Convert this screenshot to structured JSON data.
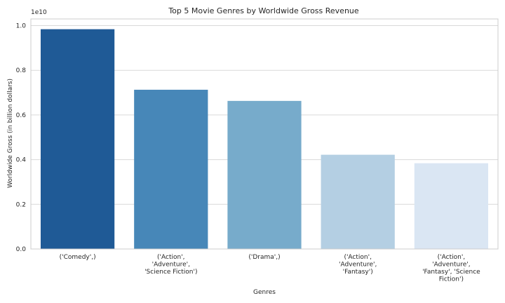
{
  "chart_data": {
    "type": "bar",
    "title": "Top 5 Movie Genres by Worldwide Gross Revenue",
    "xlabel": "Genres",
    "ylabel": "Worldwide Gross (in billion dollars)",
    "offset_text": "1e10",
    "categories": [
      [
        "('Comedy',)"
      ],
      [
        "('Action',",
        "'Adventure',",
        "'Science Fiction')"
      ],
      [
        "('Drama',)"
      ],
      [
        "('Action',",
        "'Adventure',",
        "'Fantasy')"
      ],
      [
        "('Action',",
        "'Adventure',",
        "'Fantasy', 'Science",
        "Fiction')"
      ]
    ],
    "values": [
      0.984,
      0.713,
      0.663,
      0.422,
      0.384
    ],
    "value_scale": "1e10",
    "ylim": [
      0,
      1.03
    ],
    "yticks": [
      0.0,
      0.2,
      0.4,
      0.6,
      0.8,
      1.0
    ],
    "ytick_labels": [
      "0.0",
      "0.2",
      "0.4",
      "0.6",
      "0.8",
      "1.0"
    ],
    "grid": "y",
    "colors": [
      "#1f5a96",
      "#4787b8",
      "#77abcb",
      "#b4cfe3",
      "#dae6f3"
    ]
  }
}
